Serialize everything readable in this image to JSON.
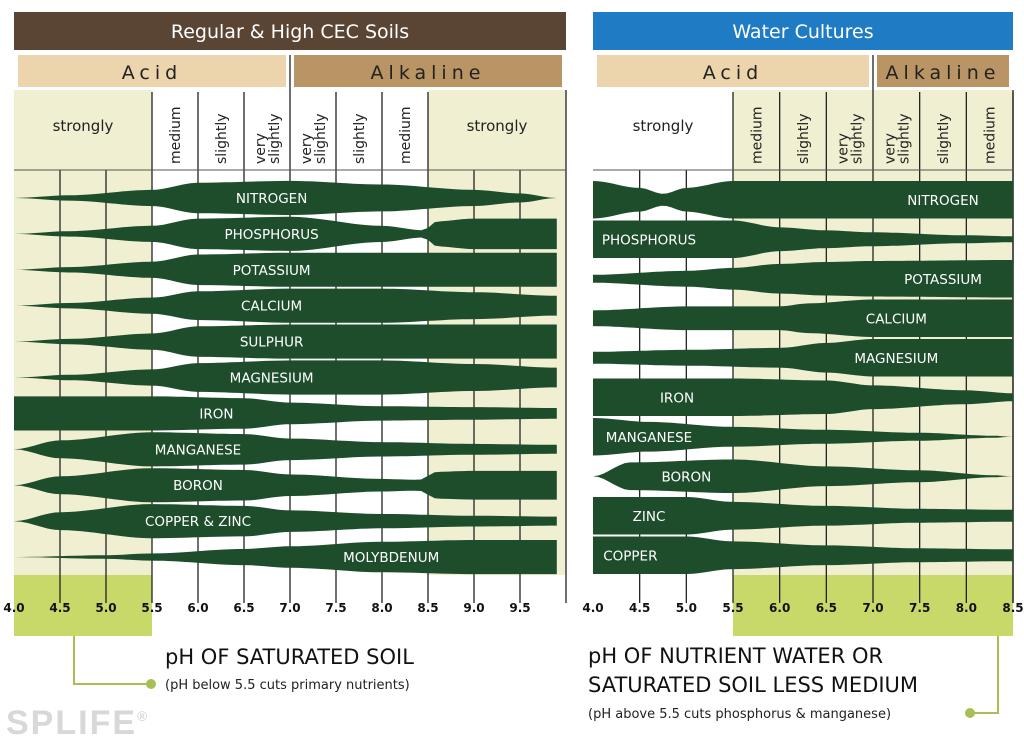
{
  "colors": {
    "band": "#1d4d2b",
    "zone": "#f0efd1",
    "highlight": "#c8d96a",
    "grid": "#222222",
    "left_title_bg": "#5a4535",
    "right_title_bg": "#1f7bc4",
    "acid_bg": "#ecd4ac",
    "alkaline_bg": "#b99464",
    "caption_line": "#a8c053"
  },
  "watermark": {
    "text": "SPLIFE",
    "mark": "®"
  },
  "chart_data": [
    {
      "type": "area",
      "title": "Regular & High CEC Soils",
      "header_left": "Acid",
      "header_right": "Alkaline",
      "ph_boundary": 7.0,
      "xlim": [
        4.0,
        10.0
      ],
      "ticks": [
        "4.0",
        "4.5",
        "5.0",
        "5.5",
        "6.0",
        "6.5",
        "7.0",
        "7.5",
        "8.0",
        "8.5",
        "9.0",
        "9.5"
      ],
      "tick_values": [
        4.0,
        4.5,
        5.0,
        5.5,
        6.0,
        6.5,
        7.0,
        7.5,
        8.0,
        8.5,
        9.0,
        9.5
      ],
      "highlight_range": [
        4.0,
        5.5
      ],
      "zones": [
        {
          "label": "strongly",
          "from": 4.0,
          "to": 5.5,
          "shaded": true,
          "rotated": false
        },
        {
          "label": "medium",
          "from": 5.5,
          "to": 6.0,
          "shaded": false,
          "rotated": true
        },
        {
          "label": "slightly",
          "from": 6.0,
          "to": 6.5,
          "shaded": false,
          "rotated": true
        },
        {
          "label": "very slightly",
          "from": 6.5,
          "to": 7.0,
          "shaded": false,
          "rotated": true
        },
        {
          "label": "very slightly",
          "from": 7.0,
          "to": 7.5,
          "shaded": false,
          "rotated": true
        },
        {
          "label": "slightly",
          "from": 7.5,
          "to": 8.0,
          "shaded": false,
          "rotated": true
        },
        {
          "label": "medium",
          "from": 8.0,
          "to": 8.5,
          "shaded": false,
          "rotated": true
        },
        {
          "label": "strongly",
          "from": 8.5,
          "to": 10.0,
          "shaded": true,
          "rotated": false
        }
      ],
      "series": [
        {
          "name": "NITROGEN",
          "label_x": 6.8,
          "widths": [
            [
              4.0,
              0.0
            ],
            [
              4.6,
              0.15
            ],
            [
              5.5,
              0.45
            ],
            [
              6.0,
              0.85
            ],
            [
              7.0,
              0.95
            ],
            [
              8.0,
              0.75
            ],
            [
              9.0,
              0.45
            ],
            [
              9.5,
              0.25
            ],
            [
              9.9,
              0.0
            ]
          ]
        },
        {
          "name": "PHOSPHORUS",
          "label_x": 6.8,
          "widths": [
            [
              4.0,
              0.0
            ],
            [
              4.6,
              0.15
            ],
            [
              5.5,
              0.45
            ],
            [
              6.0,
              0.85
            ],
            [
              7.0,
              0.95
            ],
            [
              8.0,
              0.45
            ],
            [
              8.45,
              0.2
            ],
            [
              8.6,
              0.7
            ],
            [
              9.0,
              0.85
            ],
            [
              9.9,
              0.85
            ]
          ]
        },
        {
          "name": "POTASSIUM",
          "label_x": 6.8,
          "widths": [
            [
              4.0,
              0.0
            ],
            [
              4.6,
              0.15
            ],
            [
              5.5,
              0.45
            ],
            [
              6.0,
              0.85
            ],
            [
              7.0,
              0.95
            ],
            [
              8.0,
              0.95
            ],
            [
              9.9,
              0.95
            ]
          ]
        },
        {
          "name": "CALCIUM",
          "label_x": 6.8,
          "widths": [
            [
              4.0,
              0.0
            ],
            [
              4.6,
              0.15
            ],
            [
              5.5,
              0.45
            ],
            [
              6.0,
              0.8
            ],
            [
              7.0,
              0.95
            ],
            [
              8.0,
              0.95
            ],
            [
              9.0,
              0.75
            ],
            [
              9.9,
              0.55
            ]
          ]
        },
        {
          "name": "SULPHUR",
          "label_x": 6.8,
          "widths": [
            [
              4.0,
              0.0
            ],
            [
              4.6,
              0.15
            ],
            [
              5.5,
              0.45
            ],
            [
              6.0,
              0.85
            ],
            [
              7.0,
              0.95
            ],
            [
              8.0,
              0.95
            ],
            [
              9.9,
              0.95
            ]
          ]
        },
        {
          "name": "MAGNESIUM",
          "label_x": 6.8,
          "widths": [
            [
              4.0,
              0.0
            ],
            [
              4.6,
              0.15
            ],
            [
              5.5,
              0.45
            ],
            [
              6.0,
              0.8
            ],
            [
              7.0,
              0.95
            ],
            [
              8.0,
              0.95
            ],
            [
              9.0,
              0.75
            ],
            [
              9.9,
              0.55
            ]
          ]
        },
        {
          "name": "IRON",
          "label_x": 6.2,
          "widths": [
            [
              4.0,
              0.95
            ],
            [
              5.5,
              0.95
            ],
            [
              6.5,
              0.85
            ],
            [
              7.0,
              0.6
            ],
            [
              8.0,
              0.4
            ],
            [
              9.0,
              0.35
            ],
            [
              9.9,
              0.3
            ]
          ]
        },
        {
          "name": "MANGANESE",
          "label_x": 6.0,
          "widths": [
            [
              4.0,
              0.0
            ],
            [
              4.5,
              0.5
            ],
            [
              5.5,
              0.95
            ],
            [
              6.5,
              0.85
            ],
            [
              7.0,
              0.6
            ],
            [
              8.0,
              0.4
            ],
            [
              9.0,
              0.3
            ],
            [
              9.9,
              0.25
            ]
          ]
        },
        {
          "name": "BORON",
          "label_x": 6.0,
          "widths": [
            [
              4.0,
              0.0
            ],
            [
              4.5,
              0.5
            ],
            [
              5.5,
              0.95
            ],
            [
              6.5,
              0.85
            ],
            [
              7.0,
              0.6
            ],
            [
              8.0,
              0.35
            ],
            [
              8.4,
              0.3
            ],
            [
              8.6,
              0.75
            ],
            [
              9.0,
              0.8
            ],
            [
              9.9,
              0.8
            ]
          ]
        },
        {
          "name": "COPPER & ZINC",
          "label_x": 6.0,
          "widths": [
            [
              4.0,
              0.0
            ],
            [
              4.5,
              0.5
            ],
            [
              5.5,
              0.95
            ],
            [
              6.5,
              0.85
            ],
            [
              7.0,
              0.6
            ],
            [
              8.0,
              0.4
            ],
            [
              9.0,
              0.3
            ],
            [
              9.9,
              0.25
            ]
          ]
        },
        {
          "name": "MOLYBDENUM",
          "label_x": 8.1,
          "widths": [
            [
              4.0,
              0.0
            ],
            [
              5.0,
              0.1
            ],
            [
              5.5,
              0.2
            ],
            [
              6.5,
              0.45
            ],
            [
              7.0,
              0.6
            ],
            [
              8.0,
              0.85
            ],
            [
              9.0,
              0.95
            ],
            [
              9.9,
              0.95
            ]
          ]
        }
      ]
    },
    {
      "type": "area",
      "title": "Water Cultures",
      "header_left": "Acid",
      "header_right": "Alkaline",
      "ph_boundary": 7.0,
      "xlim": [
        4.0,
        8.5
      ],
      "ticks": [
        "4.0",
        "4.5",
        "5.0",
        "5.5",
        "6.0",
        "6.5",
        "7.0",
        "7.5",
        "8.0",
        "8.5"
      ],
      "tick_values": [
        4.0,
        4.5,
        5.0,
        5.5,
        6.0,
        6.5,
        7.0,
        7.5,
        8.0,
        8.5
      ],
      "highlight_range": [
        5.5,
        8.5
      ],
      "zones": [
        {
          "label": "strongly",
          "from": 4.0,
          "to": 5.5,
          "shaded": false,
          "rotated": false
        },
        {
          "label": "medium",
          "from": 5.5,
          "to": 6.0,
          "shaded": true,
          "rotated": true
        },
        {
          "label": "slightly",
          "from": 6.0,
          "to": 6.5,
          "shaded": true,
          "rotated": true
        },
        {
          "label": "very slightly",
          "from": 6.5,
          "to": 7.0,
          "shaded": true,
          "rotated": true
        },
        {
          "label": "very slightly",
          "from": 7.0,
          "to": 7.5,
          "shaded": true,
          "rotated": true
        },
        {
          "label": "slightly",
          "from": 7.5,
          "to": 8.0,
          "shaded": true,
          "rotated": true
        },
        {
          "label": "medium",
          "from": 8.0,
          "to": 8.5,
          "shaded": true,
          "rotated": true
        }
      ],
      "series": [
        {
          "name": "NITROGEN",
          "label_x": 7.75,
          "widths": [
            [
              4.0,
              0.95
            ],
            [
              4.5,
              0.6
            ],
            [
              4.75,
              0.3
            ],
            [
              5.0,
              0.6
            ],
            [
              5.5,
              0.95
            ],
            [
              8.5,
              0.95
            ]
          ]
        },
        {
          "name": "PHOSPHORUS",
          "label_x": 4.6,
          "widths": [
            [
              4.0,
              0.95
            ],
            [
              5.5,
              0.95
            ],
            [
              6.0,
              0.6
            ],
            [
              6.5,
              0.45
            ],
            [
              7.0,
              0.35
            ],
            [
              8.0,
              0.2
            ],
            [
              8.5,
              0.15
            ]
          ]
        },
        {
          "name": "POTASSIUM",
          "label_x": 7.75,
          "widths": [
            [
              4.0,
              0.2
            ],
            [
              5.0,
              0.4
            ],
            [
              5.5,
              0.55
            ],
            [
              6.0,
              0.75
            ],
            [
              6.5,
              0.85
            ],
            [
              7.0,
              0.9
            ],
            [
              8.5,
              0.95
            ]
          ]
        },
        {
          "name": "CALCIUM",
          "label_x": 7.25,
          "widths": [
            [
              4.0,
              0.4
            ],
            [
              5.0,
              0.6
            ],
            [
              6.0,
              0.6
            ],
            [
              6.3,
              0.75
            ],
            [
              7.0,
              0.95
            ],
            [
              8.5,
              0.95
            ]
          ]
        },
        {
          "name": "MAGNESIUM",
          "label_x": 7.25,
          "widths": [
            [
              4.0,
              0.3
            ],
            [
              5.0,
              0.4
            ],
            [
              6.0,
              0.5
            ],
            [
              6.5,
              0.75
            ],
            [
              7.0,
              0.95
            ],
            [
              8.5,
              0.95
            ]
          ]
        },
        {
          "name": "IRON",
          "label_x": 4.9,
          "widths": [
            [
              4.0,
              0.95
            ],
            [
              5.5,
              0.95
            ],
            [
              6.5,
              0.85
            ],
            [
              7.0,
              0.6
            ],
            [
              8.0,
              0.35
            ],
            [
              8.5,
              0.2
            ]
          ]
        },
        {
          "name": "MANGANESE",
          "label_x": 4.6,
          "widths": [
            [
              4.0,
              0.95
            ],
            [
              4.6,
              0.75
            ],
            [
              5.5,
              0.5
            ],
            [
              6.5,
              0.35
            ],
            [
              7.5,
              0.2
            ],
            [
              8.3,
              0.05
            ],
            [
              8.5,
              0.0
            ]
          ]
        },
        {
          "name": "BORON",
          "label_x": 5.0,
          "widths": [
            [
              4.0,
              0.0
            ],
            [
              4.4,
              0.7
            ],
            [
              5.5,
              0.85
            ],
            [
              6.5,
              0.5
            ],
            [
              7.5,
              0.3
            ],
            [
              8.3,
              0.05
            ],
            [
              8.5,
              0.0
            ]
          ]
        },
        {
          "name": "ZINC",
          "label_x": 4.6,
          "widths": [
            [
              4.0,
              0.95
            ],
            [
              5.0,
              0.95
            ],
            [
              5.5,
              0.7
            ],
            [
              6.5,
              0.5
            ],
            [
              7.5,
              0.35
            ],
            [
              8.5,
              0.3
            ]
          ]
        },
        {
          "name": "COPPER",
          "label_x": 4.4,
          "widths": [
            [
              4.0,
              0.95
            ],
            [
              5.0,
              0.95
            ],
            [
              5.5,
              0.7
            ],
            [
              6.5,
              0.5
            ],
            [
              7.5,
              0.35
            ],
            [
              8.5,
              0.3
            ]
          ]
        }
      ]
    }
  ],
  "captions": {
    "left": {
      "line1": "pH OF SATURATED SOIL",
      "sub": "(pH below 5.5 cuts primary nutrients)"
    },
    "right": {
      "line1": "pH OF NUTRIENT WATER OR",
      "line2": "SATURATED SOIL LESS MEDIUM",
      "sub": "(pH above 5.5 cuts phosphorus & manganese)"
    }
  }
}
